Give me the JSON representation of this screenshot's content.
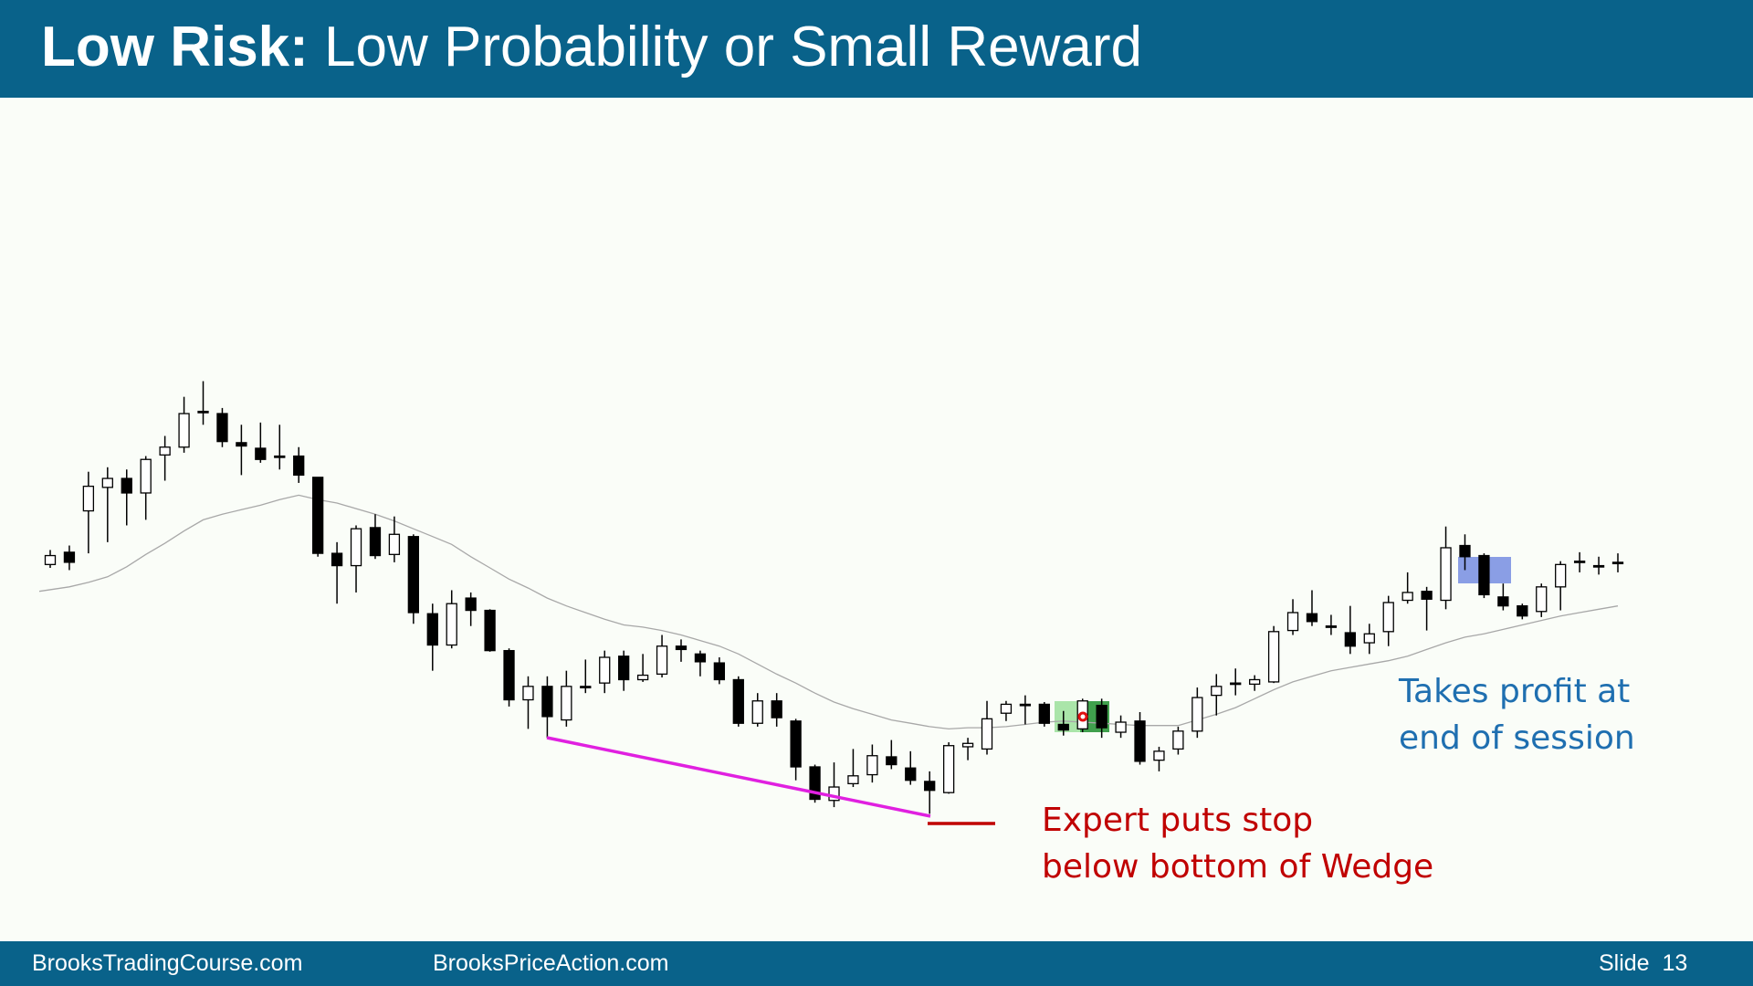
{
  "header": {
    "title_bold": "Low Risk:",
    "title": "Low Probability or Small Reward"
  },
  "chart_data": {
    "type": "candlestick",
    "ylim": [
      0,
      500
    ],
    "up_color": "#ffffff",
    "down_color": "#000000",
    "ma_color": "#a8a8a8",
    "open": [
      295,
      306,
      343,
      364,
      372,
      359,
      393,
      400,
      432,
      430,
      404,
      399,
      392,
      392,
      373,
      305,
      294,
      328,
      304,
      320,
      251,
      223,
      265,
      254,
      218,
      174,
      186,
      156,
      186,
      189,
      213,
      192,
      197,
      222,
      215,
      207,
      192,
      153,
      173,
      155,
      114,
      84,
      99,
      107,
      123,
      113,
      101,
      91,
      132,
      130,
      162,
      170,
      170,
      152,
      148,
      169,
      145,
      155,
      120,
      130,
      146,
      178,
      189,
      188,
      190,
      236,
      251,
      240,
      234,
      225,
      235,
      263,
      271,
      263,
      312,
      303,
      266,
      258,
      253,
      275,
      298,
      294,
      297
    ],
    "high": [
      308,
      312,
      378,
      382,
      380,
      392,
      410,
      445,
      459,
      435,
      420,
      422,
      420,
      400,
      373,
      315,
      330,
      340,
      338,
      322,
      260,
      272,
      270,
      255,
      220,
      195,
      195,
      200,
      210,
      218,
      218,
      215,
      232,
      228,
      218,
      212,
      195,
      180,
      180,
      157,
      116,
      118,
      130,
      134,
      138,
      128,
      110,
      136,
      140,
      173,
      173,
      178,
      172,
      164,
      175,
      175,
      160,
      163,
      132,
      150,
      185,
      197,
      202,
      196,
      240,
      264,
      272,
      250,
      258,
      242,
      267,
      288,
      275,
      329,
      322,
      305,
      278,
      260,
      278,
      298,
      306,
      302,
      305
    ],
    "low": [
      292,
      290,
      305,
      315,
      330,
      335,
      370,
      395,
      420,
      400,
      375,
      386,
      380,
      368,
      302,
      260,
      270,
      300,
      297,
      242,
      200,
      220,
      240,
      217,
      168,
      148,
      140,
      150,
      180,
      180,
      182,
      190,
      194,
      208,
      195,
      188,
      150,
      150,
      150,
      102,
      82,
      78,
      96,
      100,
      112,
      98,
      72,
      90,
      120,
      125,
      155,
      152,
      150,
      142,
      145,
      140,
      140,
      116,
      110,
      125,
      140,
      160,
      178,
      182,
      189,
      232,
      240,
      232,
      215,
      215,
      222,
      260,
      236,
      255,
      290,
      265,
      254,
      246,
      248,
      254,
      288,
      286,
      288
    ],
    "close": [
      303,
      297,
      365,
      372,
      359,
      389,
      400,
      430,
      431,
      405,
      401,
      389,
      392,
      375,
      305,
      294,
      327,
      303,
      322,
      252,
      223,
      260,
      254,
      218,
      174,
      186,
      159,
      186,
      186,
      212,
      192,
      196,
      222,
      219,
      208,
      192,
      153,
      173,
      158,
      114,
      85,
      96,
      106,
      124,
      116,
      102,
      93,
      133,
      135,
      157,
      170,
      170,
      153,
      147,
      173,
      149,
      154,
      119,
      128,
      146,
      176,
      186,
      189,
      192,
      235,
      252,
      244,
      240,
      222,
      233,
      261,
      270,
      264,
      310,
      302,
      268,
      258,
      249,
      275,
      295,
      298,
      294,
      297
    ],
    "moving_average": [
      271,
      275,
      279,
      284,
      293,
      304,
      314,
      325,
      335,
      340,
      344,
      348,
      353,
      357,
      353,
      350,
      345,
      340,
      334,
      327,
      320,
      313,
      302,
      292,
      282,
      274,
      265,
      258,
      252,
      246,
      241,
      239,
      236,
      232,
      227,
      222,
      215,
      206,
      197,
      189,
      180,
      172,
      166,
      161,
      156,
      153,
      150,
      148,
      149,
      149,
      150,
      152,
      154,
      155,
      154,
      153,
      152,
      151,
      151,
      151,
      156,
      161,
      167,
      175,
      183,
      190,
      195,
      200,
      203,
      206,
      209,
      213,
      219,
      225,
      230,
      233,
      237,
      241,
      245,
      249,
      252,
      255,
      258
    ],
    "annotations": [
      [
        "Takes profit at",
        "end of session"
      ],
      [
        "Expert puts stop",
        "below bottom of Wedge"
      ]
    ]
  },
  "footer": {
    "left": "BrooksTradingCourse.com",
    "middle": "BrooksPriceAction.com",
    "right": "Slide  13"
  }
}
